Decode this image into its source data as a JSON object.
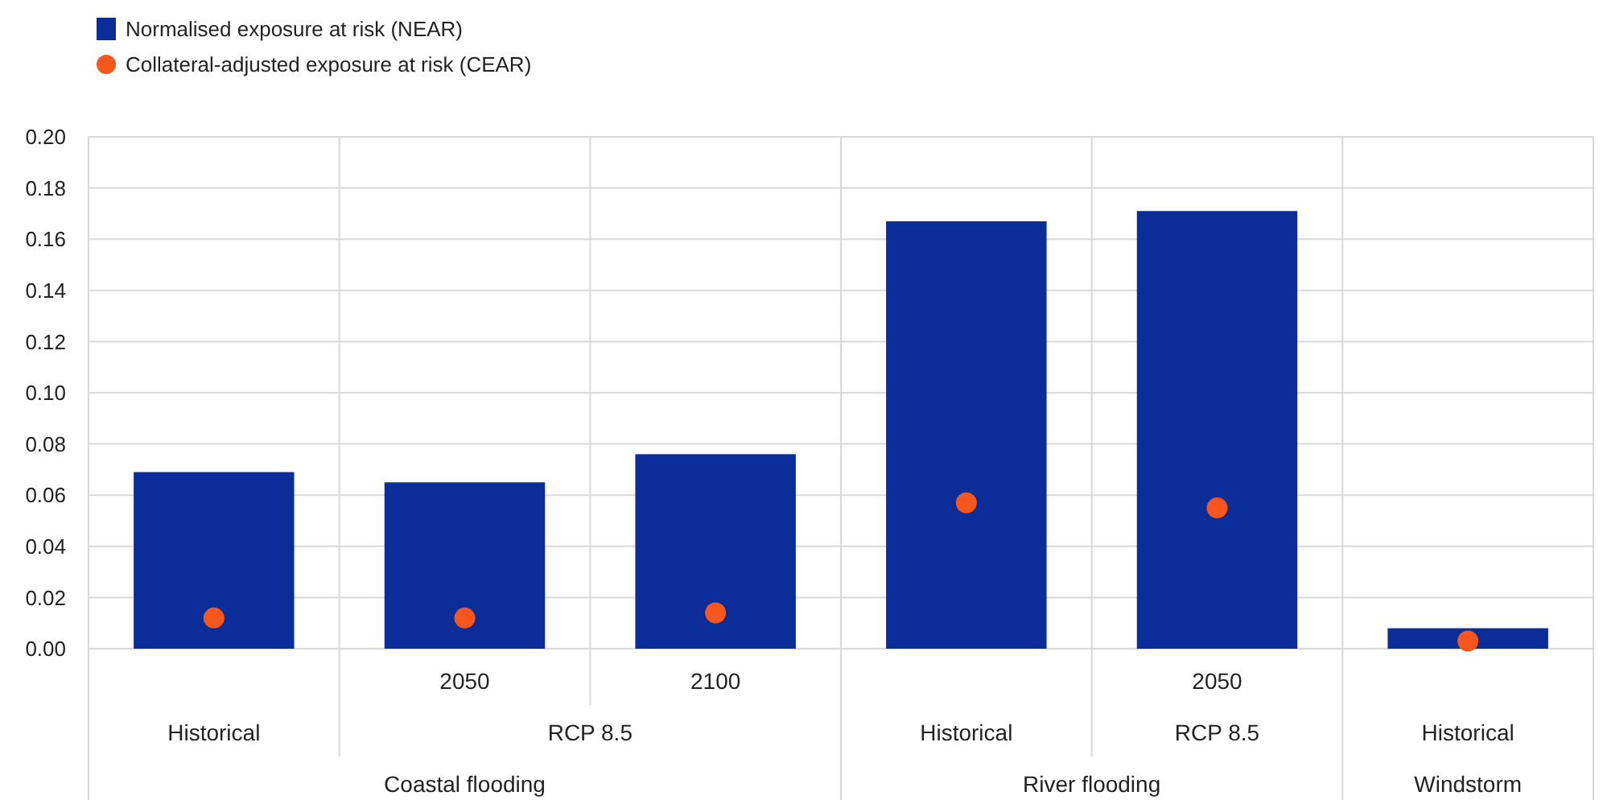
{
  "chart_data": {
    "type": "bar",
    "categories": [
      null,
      "2050",
      "2100",
      null,
      "2050",
      null
    ],
    "series": [
      {
        "name": "Normalised exposure at risk (NEAR)",
        "color": "#0b2d9a",
        "values": [
          0.069,
          0.065,
          0.076,
          0.167,
          0.171,
          0.008
        ]
      },
      {
        "name": "Collateral-adjusted exposure at risk (CEAR)",
        "type": "scatter",
        "color": "#f7561c",
        "values": [
          0.012,
          0.012,
          0.014,
          0.057,
          0.055,
          0.003
        ]
      }
    ],
    "annotations": [
      "Historical",
      "RCP 8.5",
      "Historical",
      "RCP 8.5",
      "Historical",
      "Coastal flooding",
      "River flooding",
      "Windstorm"
    ],
    "ylim": [
      0,
      0.2
    ],
    "yticks": [
      {
        "value": 0,
        "label": "0.00"
      },
      {
        "value": 0.02,
        "label": "0.02"
      },
      {
        "value": 0.04,
        "label": "0.04"
      },
      {
        "value": 0.06,
        "label": "0.06"
      },
      {
        "value": 0.08,
        "label": "0.08"
      },
      {
        "value": 0.1,
        "label": "0.10"
      },
      {
        "value": 0.12,
        "label": "0.12"
      },
      {
        "value": 0.14,
        "label": "0.14"
      },
      {
        "value": 0.16,
        "label": "0.16"
      },
      {
        "value": 0.18,
        "label": "0.18"
      },
      {
        "value": 0.2,
        "label": "0.20"
      }
    ],
    "grid": true,
    "legend": "top left",
    "marker": "circle"
  }
}
